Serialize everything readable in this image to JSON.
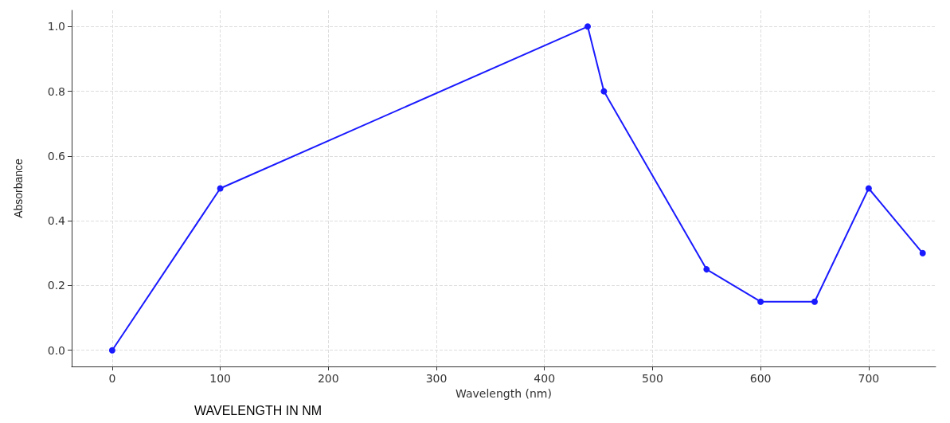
{
  "chart_data": {
    "type": "line",
    "xlabel": "Wavelength (nm)",
    "ylabel": "Absorbance",
    "x": [
      0,
      100,
      440,
      455,
      550,
      600,
      650,
      700,
      750
    ],
    "series": [
      {
        "color": "#1a1aff",
        "values": [
          0.0,
          0.5,
          1.0,
          0.8,
          0.25,
          0.15,
          0.15,
          0.5,
          0.3
        ]
      }
    ],
    "xlim": [
      -37.5,
      762
    ],
    "xticks": [
      0,
      100,
      200,
      300,
      400,
      500,
      600,
      700
    ],
    "ylim": [
      -0.05,
      1.05
    ],
    "yticks": [
      {
        "value": 0,
        "label": "0.0"
      },
      {
        "value": 0.2,
        "label": "0.2"
      },
      {
        "value": 0.4,
        "label": "0.4"
      },
      {
        "value": 0.6,
        "label": "0.6"
      },
      {
        "value": 0.8,
        "label": "0.8"
      },
      {
        "value": 1,
        "label": "1.0"
      }
    ],
    "grid": true,
    "marker": "circle",
    "line_style": "solid",
    "annotations": [
      "WAVELENGTH IN NM"
    ]
  }
}
